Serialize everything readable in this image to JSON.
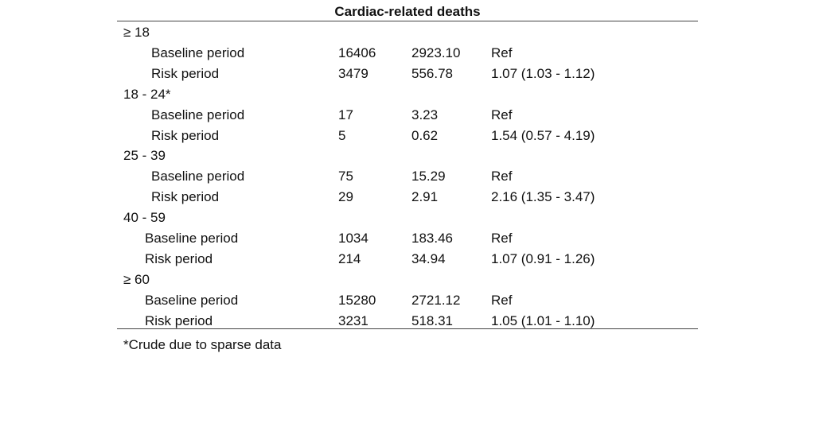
{
  "table": {
    "title": "Cardiac-related deaths",
    "groups": [
      {
        "label": "≥ 18",
        "rows": [
          [
            "Baseline period",
            "16406",
            "2923.10",
            "Ref"
          ],
          [
            "Risk period",
            "3479",
            "556.78",
            "1.07 (1.03 - 1.12)"
          ]
        ]
      },
      {
        "label": "18 - 24*",
        "rows": [
          [
            "Baseline period",
            "17",
            "3.23",
            "Ref"
          ],
          [
            "Risk period",
            "5",
            "0.62",
            "1.54 (0.57 - 4.19)"
          ]
        ]
      },
      {
        "label": "25 - 39",
        "rows": [
          [
            "Baseline period",
            "75",
            "15.29",
            "Ref"
          ],
          [
            "Risk period",
            "29",
            "2.91",
            "2.16 (1.35 - 3.47)"
          ]
        ]
      },
      {
        "label": "40 - 59",
        "rows": [
          [
            "Baseline period",
            "1034",
            "183.46",
            "Ref"
          ],
          [
            "Risk period",
            "214",
            "34.94",
            "1.07 (0.91 - 1.26)"
          ]
        ]
      },
      {
        "label": "≥ 60",
        "rows": [
          [
            "Baseline period",
            "15280",
            "2721.12",
            "Ref"
          ],
          [
            "Risk period",
            "3231",
            "518.31",
            "1.05 (1.01 - 1.10)"
          ]
        ]
      }
    ],
    "footnote": "*Crude due to sparse data"
  }
}
